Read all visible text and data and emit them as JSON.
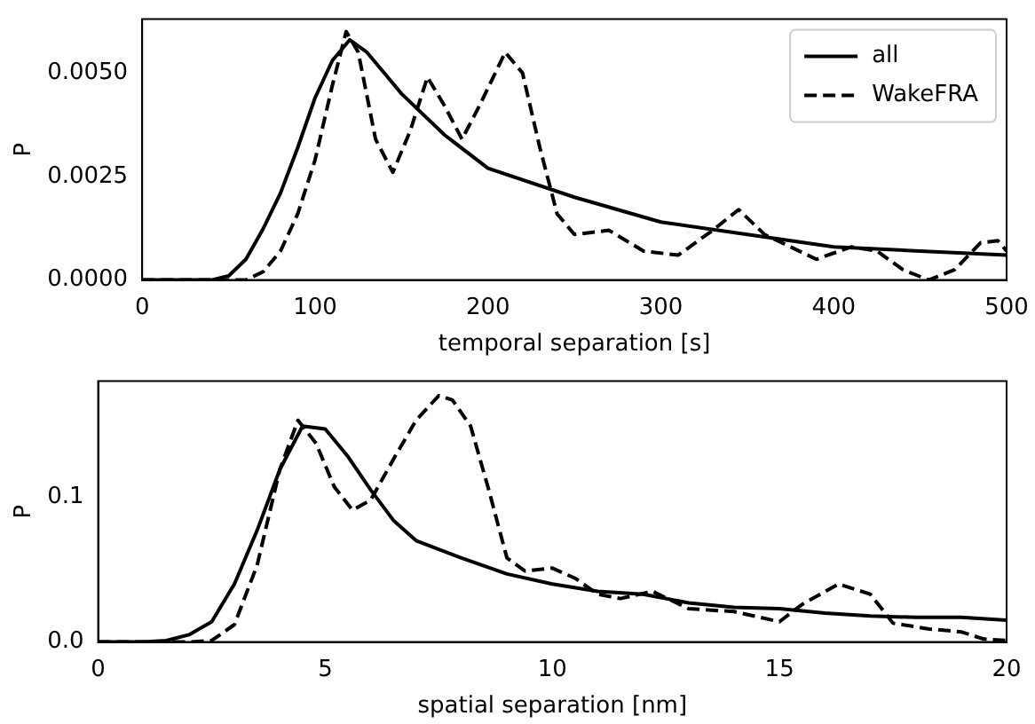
{
  "chart_data": [
    {
      "type": "line",
      "xlabel": "temporal separation [s]",
      "ylabel": "P",
      "xlim": [
        0,
        500
      ],
      "ylim": [
        0,
        0.0063
      ],
      "xticks": [
        0,
        100,
        200,
        300,
        400,
        500
      ],
      "yticks": [
        {
          "value": 0,
          "label": "0.0000"
        },
        {
          "value": 0.0025,
          "label": "0.0025"
        },
        {
          "value": 0.005,
          "label": "0.0050"
        }
      ],
      "legend": "top right",
      "marker": "none",
      "grid": false,
      "series": [
        {
          "name": "all",
          "color": "#000000",
          "line_style": "solid",
          "x": [
            0,
            30,
            40,
            50,
            60,
            70,
            80,
            90,
            100,
            110,
            120,
            130,
            140,
            150,
            175,
            200,
            250,
            300,
            350,
            400,
            450,
            500
          ],
          "values": [
            0,
            0,
            0,
            0.0001,
            0.0005,
            0.00124,
            0.0021,
            0.0032,
            0.0044,
            0.0053,
            0.0058,
            0.0055,
            0.005,
            0.0045,
            0.0035,
            0.0027,
            0.002,
            0.0014,
            0.0011,
            0.0008,
            0.0007,
            0.0006
          ]
        },
        {
          "name": "WakeFRA",
          "color": "#000000",
          "line_style": "dashed",
          "x": [
            0,
            50,
            60,
            70,
            80,
            90,
            100,
            110,
            118,
            125,
            135,
            145,
            155,
            165,
            175,
            185,
            195,
            210,
            220,
            230,
            240,
            250,
            270,
            290,
            310,
            330,
            345,
            360,
            375,
            390,
            410,
            425,
            440,
            455,
            470,
            485,
            495,
            500
          ],
          "values": [
            0,
            0,
            0,
            0.0002,
            0.0007,
            0.0016,
            0.0029,
            0.0047,
            0.006,
            0.0055,
            0.0034,
            0.0026,
            0.0036,
            0.0049,
            0.0042,
            0.0034,
            0.0042,
            0.0055,
            0.005,
            0.0032,
            0.0016,
            0.0011,
            0.0012,
            0.0007,
            0.0006,
            0.0012,
            0.0017,
            0.0011,
            0.0008,
            0.0005,
            0.0008,
            0.0007,
            0.00025,
            0,
            0.00025,
            0.0009,
            0.00095,
            0.0007
          ]
        }
      ]
    },
    {
      "type": "line",
      "xlabel": "spatial separation [nm]",
      "ylabel": "P",
      "xlim": [
        0,
        20
      ],
      "ylim": [
        0,
        0.18
      ],
      "xticks": [
        0,
        5,
        10,
        15,
        20
      ],
      "yticks": [
        {
          "value": 0,
          "label": "0.0"
        },
        {
          "value": 0.1,
          "label": "0.1"
        }
      ],
      "marker": "none",
      "grid": false,
      "series": [
        {
          "color": "#000000",
          "line_style": "solid",
          "x": [
            0,
            1,
            1.5,
            2,
            2.5,
            3,
            3.5,
            4,
            4.5,
            5,
            5.5,
            6,
            6.5,
            7,
            8,
            9,
            10,
            11,
            12,
            13,
            14,
            15,
            16,
            17,
            18,
            19,
            20
          ],
          "values": [
            0,
            0,
            0.001,
            0.005,
            0.014,
            0.04,
            0.077,
            0.119,
            0.149,
            0.147,
            0.128,
            0.105,
            0.084,
            0.07,
            0.058,
            0.047,
            0.04,
            0.035,
            0.033,
            0.027,
            0.024,
            0.023,
            0.02,
            0.018,
            0.017,
            0.017,
            0.015
          ]
        },
        {
          "color": "#000000",
          "line_style": "dashed",
          "x": [
            0,
            2,
            2.5,
            3,
            3.5,
            4,
            4.4,
            4.8,
            5.2,
            5.6,
            6,
            6.5,
            7,
            7.5,
            7.8,
            8.2,
            8.6,
            9,
            9.4,
            10,
            10.5,
            11,
            11.5,
            12.2,
            13,
            14,
            15,
            15.5,
            16.3,
            17,
            17.5,
            18.3,
            19,
            19.5,
            20
          ],
          "values": [
            0,
            0,
            0.001,
            0.012,
            0.053,
            0.119,
            0.153,
            0.137,
            0.107,
            0.091,
            0.098,
            0.126,
            0.153,
            0.17,
            0.167,
            0.149,
            0.105,
            0.058,
            0.049,
            0.051,
            0.044,
            0.033,
            0.03,
            0.035,
            0.023,
            0.021,
            0.014,
            0.026,
            0.04,
            0.033,
            0.013,
            0.009,
            0.007,
            0.002,
            0.001
          ]
        }
      ]
    }
  ]
}
